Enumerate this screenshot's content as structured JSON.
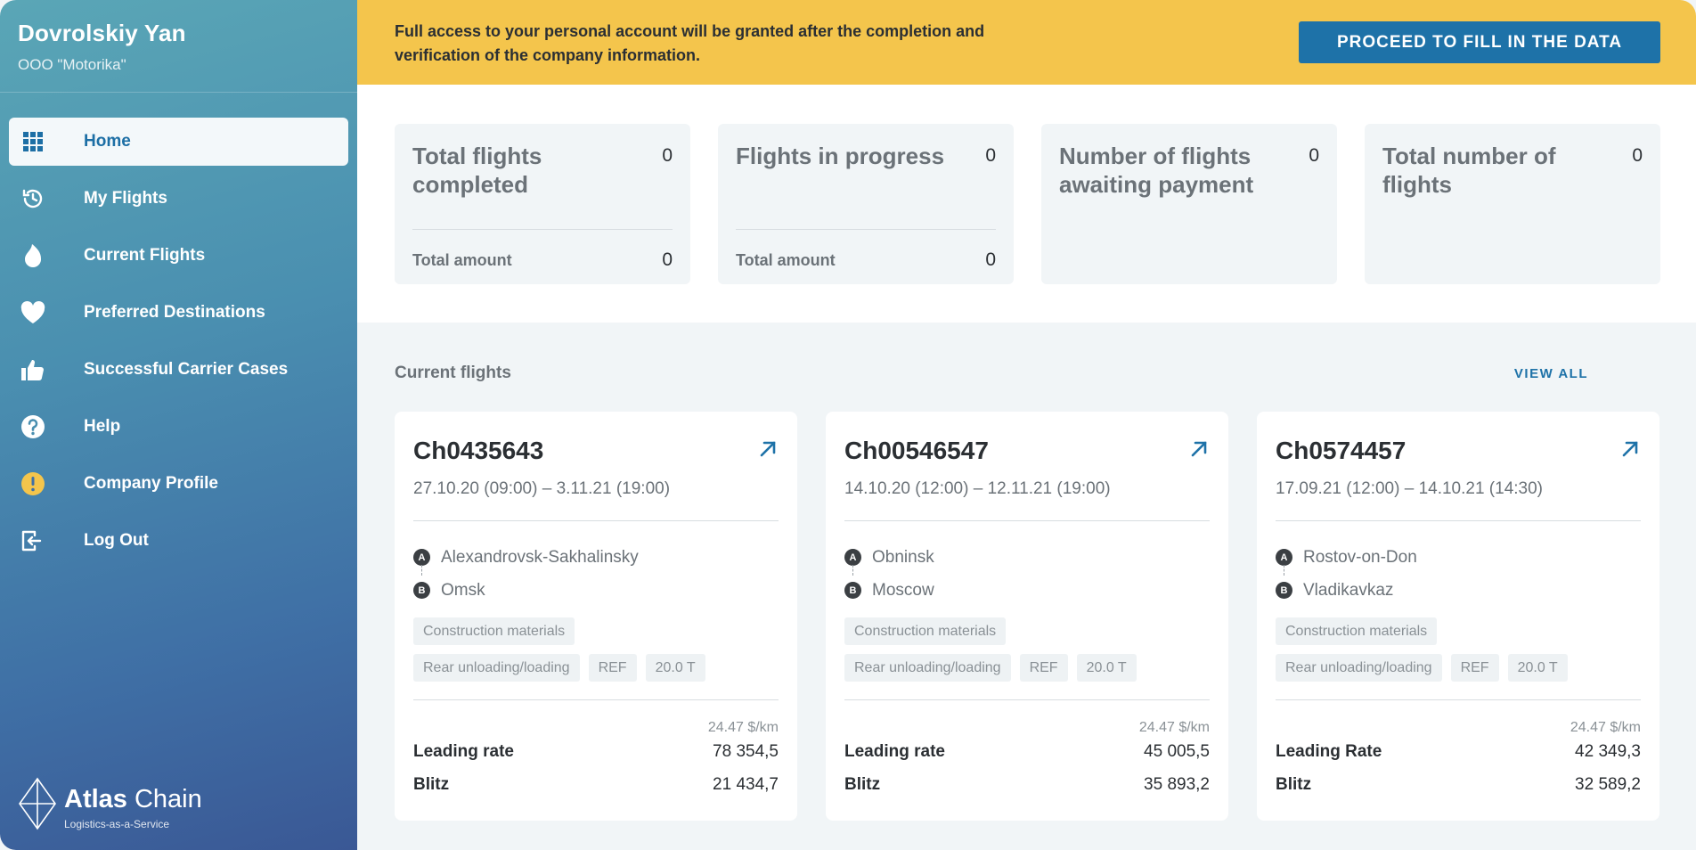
{
  "user": {
    "name": "Dovrolskiy Yan",
    "company": "OOO \"Motorika\""
  },
  "nav": [
    {
      "label": "Home",
      "icon": "grid-icon",
      "active": true
    },
    {
      "label": "My Flights",
      "icon": "history-icon"
    },
    {
      "label": "Current Flights",
      "icon": "flame-icon"
    },
    {
      "label": "Preferred Destinations",
      "icon": "heart-icon"
    },
    {
      "label": "Successful Carrier Cases",
      "icon": "thumbs-up-icon"
    },
    {
      "label": "Help",
      "icon": "help-icon"
    },
    {
      "label": "Company Profile",
      "icon": "warning-icon"
    },
    {
      "label": "Log Out",
      "icon": "logout-icon"
    }
  ],
  "logo": {
    "name_bold": "Atlas",
    "name_rest": " Chain",
    "tagline": "Logistics-as-a-Service"
  },
  "banner": {
    "text": "Full access to your personal account will be granted after the completion and verification of the company information.",
    "button": "PROCEED TO FILL IN THE DATA"
  },
  "stats": [
    {
      "title": "Total flights completed",
      "value": "0",
      "footer_label": "Total amount",
      "footer_value": "0"
    },
    {
      "title": "Flights in progress",
      "value": "0",
      "footer_label": "Total amount",
      "footer_value": "0"
    },
    {
      "title": "Number of flights awaiting payment",
      "value": "0"
    },
    {
      "title": "Total number of flights",
      "value": "0"
    }
  ],
  "current_flights": {
    "title": "Current flights",
    "view_all": "VIEW ALL",
    "cards": [
      {
        "id": "Ch0435643",
        "dates": "27.10.20 (09:00) – 3.11.21 (19:00)",
        "from_marker": "A",
        "from": "Alexandrovsk-Sakhalinsky",
        "to_marker": "B",
        "to": "Omsk",
        "cargo": "Construction materials",
        "loading": "Rear unloading/loading",
        "body": "REF",
        "weight": "20.0 T",
        "rate_unit": "24.47 $/km",
        "leading_label": "Leading rate",
        "leading_value": "78 354,5",
        "blitz_label": "Blitz",
        "blitz_value": "21 434,7"
      },
      {
        "id": "Ch00546547",
        "dates": "14.10.20 (12:00) – 12.11.21 (19:00)",
        "from_marker": "A",
        "from": "Obninsk",
        "to_marker": "B",
        "to": "Moscow",
        "cargo": "Construction materials",
        "loading": "Rear unloading/loading",
        "body": "REF",
        "weight": "20.0 T",
        "rate_unit": "24.47 $/km",
        "leading_label": "Leading rate",
        "leading_value": "45 005,5",
        "blitz_label": "Blitz",
        "blitz_value": "35 893,2"
      },
      {
        "id": "Ch0574457",
        "dates": "17.09.21 (12:00) – 14.10.21 (14:30)",
        "from_marker": "A",
        "from": "Rostov-on-Don",
        "to_marker": "B",
        "to": "Vladikavkaz",
        "cargo": "Construction materials",
        "loading": "Rear unloading/loading",
        "body": "REF",
        "weight": "20.0 T",
        "rate_unit": "24.47 $/km",
        "leading_label": "Leading Rate",
        "leading_value": "42 349,3",
        "blitz_label": "Blitz",
        "blitz_value": "32 589,2"
      }
    ]
  },
  "colors": {
    "accent": "#1e72a8",
    "banner": "#f4c54c",
    "warning_badge": "#f4c54c"
  }
}
